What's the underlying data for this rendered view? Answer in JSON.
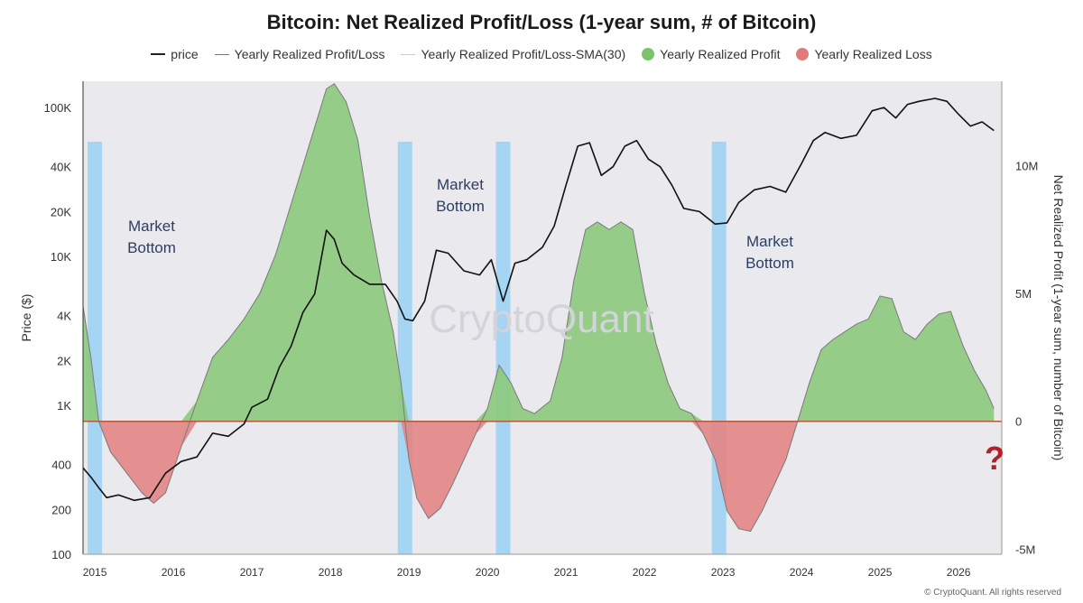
{
  "chart_data": {
    "type": "area",
    "title": "Bitcoin: Net Realized Profit/Loss (1-year sum, # of Bitcoin)",
    "ylabel_left": "Price ($)",
    "ylabel_right": "Net Realized Profit (1-year sum, number of Bitcoin)",
    "legend": [
      {
        "name": "price",
        "color": "#111111",
        "kind": "line"
      },
      {
        "name": "Yearly Realized Profit/Loss",
        "color": "#777777",
        "kind": "line"
      },
      {
        "name": "Yearly Realized Profit/Loss-SMA(30)",
        "color": "#cccccc",
        "kind": "line"
      },
      {
        "name": "Yearly Realized Profit",
        "color": "#7cc36b",
        "kind": "dot"
      },
      {
        "name": "Yearly Realized Loss",
        "color": "#e07b7b",
        "kind": "dot"
      }
    ],
    "x_ticks": [
      "2015",
      "2016",
      "2017",
      "2018",
      "2019",
      "2020",
      "2021",
      "2022",
      "2023",
      "2024",
      "2025",
      "2026"
    ],
    "left_ticks": [
      {
        "label": "100K",
        "value": 100000
      },
      {
        "label": "40K",
        "value": 40000
      },
      {
        "label": "20K",
        "value": 20000
      },
      {
        "label": "10K",
        "value": 10000
      },
      {
        "label": "4K",
        "value": 4000
      },
      {
        "label": "2K",
        "value": 2000
      },
      {
        "label": "1K",
        "value": 1000
      },
      {
        "label": "400",
        "value": 400
      },
      {
        "label": "200",
        "value": 200
      },
      {
        "label": "100",
        "value": 100
      }
    ],
    "right_ticks": [
      {
        "label": "10M",
        "value": 10
      },
      {
        "label": "5M",
        "value": 5
      },
      {
        "label": "0",
        "value": 0
      },
      {
        "label": "-5M",
        "value": -5
      }
    ],
    "xlim": [
      2014.85,
      2026.55
    ],
    "left_ylim": [
      100,
      150000
    ],
    "right_ylim": [
      -5.2,
      13.3
    ],
    "market_bottoms": [
      {
        "x": 2015.0,
        "label": "Market\nBottom"
      },
      {
        "x": 2018.95,
        "label": "Market\nBottom"
      },
      {
        "x": 2020.2,
        "label": ""
      },
      {
        "x": 2022.95,
        "label": "Market\nBottom"
      }
    ],
    "price": {
      "x": [
        2014.85,
        2014.95,
        2015.05,
        2015.15,
        2015.3,
        2015.5,
        2015.7,
        2015.9,
        2016.1,
        2016.3,
        2016.5,
        2016.7,
        2016.9,
        2017.0,
        2017.2,
        2017.35,
        2017.5,
        2017.65,
        2017.8,
        2017.95,
        2018.05,
        2018.15,
        2018.3,
        2018.5,
        2018.7,
        2018.85,
        2018.95,
        2019.05,
        2019.2,
        2019.35,
        2019.5,
        2019.7,
        2019.9,
        2020.05,
        2020.2,
        2020.35,
        2020.5,
        2020.7,
        2020.85,
        2021.0,
        2021.15,
        2021.3,
        2021.45,
        2021.6,
        2021.75,
        2021.9,
        2022.05,
        2022.2,
        2022.35,
        2022.5,
        2022.7,
        2022.9,
        2023.05,
        2023.2,
        2023.4,
        2023.6,
        2023.8,
        2024.0,
        2024.15,
        2024.3,
        2024.5,
        2024.7,
        2024.9,
        2025.05,
        2025.2,
        2025.35,
        2025.5,
        2025.7,
        2025.85,
        2026.0,
        2026.15,
        2026.3,
        2026.45
      ],
      "y": [
        380,
        330,
        280,
        240,
        250,
        230,
        240,
        350,
        420,
        450,
        650,
        620,
        750,
        970,
        1100,
        1800,
        2500,
        4200,
        5600,
        15000,
        13000,
        9000,
        7500,
        6500,
        6500,
        5000,
        3800,
        3700,
        5000,
        11000,
        10500,
        8000,
        7500,
        9500,
        5000,
        9000,
        9500,
        11500,
        16000,
        30000,
        55000,
        58000,
        35000,
        40000,
        55000,
        60000,
        45000,
        40000,
        30000,
        21000,
        20000,
        16500,
        16800,
        23000,
        28000,
        29500,
        27000,
        42000,
        60000,
        68000,
        62000,
        65000,
        95000,
        100000,
        85000,
        105000,
        110000,
        115000,
        110000,
        90000,
        75000,
        80000,
        70000
      ]
    },
    "net_realized_pl": {
      "unit": "million BTC",
      "x": [
        2014.85,
        2014.95,
        2015.05,
        2015.2,
        2015.4,
        2015.6,
        2015.75,
        2015.9,
        2016.1,
        2016.3,
        2016.5,
        2016.7,
        2016.9,
        2017.1,
        2017.3,
        2017.5,
        2017.7,
        2017.85,
        2017.95,
        2018.05,
        2018.2,
        2018.35,
        2018.5,
        2018.65,
        2018.8,
        2018.9,
        2019.0,
        2019.1,
        2019.25,
        2019.4,
        2019.55,
        2019.7,
        2019.85,
        2020.0,
        2020.15,
        2020.3,
        2020.45,
        2020.6,
        2020.8,
        2020.95,
        2021.1,
        2021.25,
        2021.4,
        2021.55,
        2021.7,
        2021.85,
        2022.0,
        2022.15,
        2022.3,
        2022.45,
        2022.6,
        2022.75,
        2022.9,
        2023.05,
        2023.2,
        2023.35,
        2023.5,
        2023.65,
        2023.8,
        2023.95,
        2024.1,
        2024.25,
        2024.4,
        2024.55,
        2024.7,
        2024.85,
        2025.0,
        2025.15,
        2025.3,
        2025.45,
        2025.6,
        2025.75,
        2025.9,
        2026.05,
        2026.2,
        2026.35,
        2026.45
      ],
      "y": [
        4.5,
        2.5,
        0.0,
        -1.2,
        -2.0,
        -2.8,
        -3.2,
        -2.8,
        -1.0,
        0.8,
        2.5,
        3.2,
        4.0,
        5.0,
        6.5,
        8.5,
        10.5,
        12.0,
        13.0,
        13.2,
        12.5,
        11.0,
        8.0,
        5.5,
        3.5,
        1.5,
        -1.5,
        -3.0,
        -3.8,
        -3.4,
        -2.5,
        -1.5,
        -0.5,
        0.5,
        2.2,
        1.5,
        0.5,
        0.3,
        0.8,
        2.5,
        5.5,
        7.5,
        7.8,
        7.5,
        7.8,
        7.5,
        5.0,
        3.0,
        1.5,
        0.5,
        0.3,
        -0.5,
        -1.5,
        -3.5,
        -4.2,
        -4.3,
        -3.5,
        -2.5,
        -1.5,
        0.0,
        1.5,
        2.8,
        3.2,
        3.5,
        3.8,
        4.0,
        4.9,
        4.8,
        3.5,
        3.2,
        3.8,
        4.2,
        4.3,
        3.0,
        2.0,
        1.2,
        0.5
      ]
    },
    "question_mark": "?",
    "watermark": "CryptoQuant",
    "credit": "© CryptoQuant. All rights reserved"
  }
}
